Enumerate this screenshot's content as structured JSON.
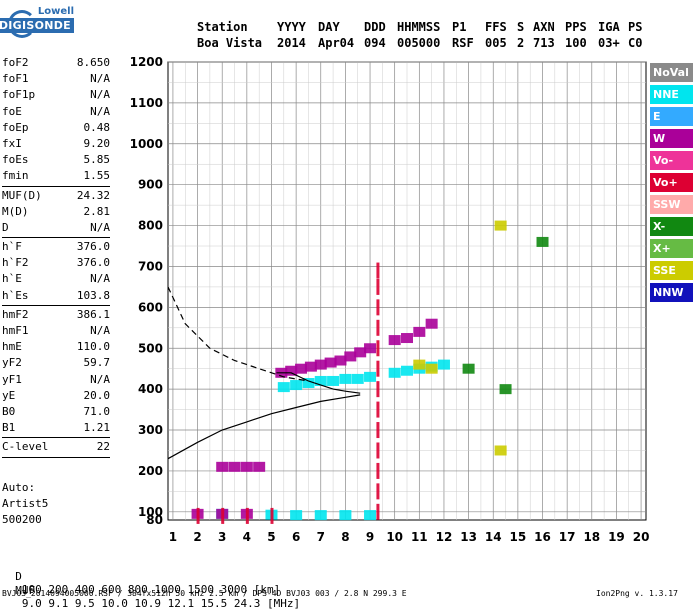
{
  "logo": {
    "top": "Lowell",
    "bottom": "DIGISONDE"
  },
  "header": {
    "row1": [
      "Station",
      "YYYY",
      "DAY",
      "DDD",
      "HHMMSS",
      "P1",
      "FFS",
      "S",
      "AXN",
      "PPS",
      "IGA",
      "PS"
    ],
    "row2": [
      "Boa Vista",
      "2014",
      "Apr04",
      "094",
      "005000",
      "RSF",
      "005",
      "2",
      "713",
      "100",
      "03+",
      "C0"
    ]
  },
  "params": [
    {
      "group": [
        [
          "foF2",
          "8.650"
        ],
        [
          "foF1",
          "N/A"
        ],
        [
          "foF1p",
          "N/A"
        ],
        [
          "foE",
          "N/A"
        ],
        [
          "foEp",
          "0.48"
        ],
        [
          "fxI",
          "9.20"
        ],
        [
          "foEs",
          "5.85"
        ],
        [
          "fmin",
          "1.55"
        ]
      ]
    },
    {
      "group": [
        [
          "MUF(D)",
          "24.32"
        ],
        [
          "M(D)",
          "2.81"
        ],
        [
          "D",
          "N/A"
        ]
      ]
    },
    {
      "group": [
        [
          "h`F",
          "376.0"
        ],
        [
          "h`F2",
          "376.0"
        ],
        [
          "h`E",
          "N/A"
        ],
        [
          "h`Es",
          "103.8"
        ]
      ]
    },
    {
      "group": [
        [
          "hmF2",
          "386.1"
        ],
        [
          "hmF1",
          "N/A"
        ],
        [
          "hmE",
          "110.0"
        ],
        [
          "yF2",
          "59.7"
        ],
        [
          "yF1",
          "N/A"
        ],
        [
          "yE",
          "20.0"
        ],
        [
          "B0",
          "71.0"
        ],
        [
          "B1",
          "1.21"
        ]
      ]
    },
    {
      "group": [
        [
          "C-level",
          "22"
        ]
      ]
    }
  ],
  "auto": {
    "line1": "Auto:",
    "line2": "Artist5",
    "line3": "500200"
  },
  "legend": [
    {
      "label": "NoVal",
      "color": "#8a8a8a"
    },
    {
      "label": "NNE",
      "color": "#00e5ee"
    },
    {
      "label": "E",
      "color": "#33aaff"
    },
    {
      "label": "W",
      "color": "#aa0099"
    },
    {
      "label": "Vo-",
      "color": "#ee3399"
    },
    {
      "label": "Vo+",
      "color": "#dd0033"
    },
    {
      "label": "SSW",
      "color": "#ffaaaa"
    },
    {
      "label": "X-",
      "color": "#118811"
    },
    {
      "label": "X+",
      "color": "#66bb44"
    },
    {
      "label": "SSE",
      "color": "#cccc00"
    },
    {
      "label": "NNW",
      "color": "#1111bb"
    }
  ],
  "footer": {
    "d_label": "D",
    "d_values": [
      "100",
      "200",
      "400",
      "600",
      "800",
      "1000",
      "1500",
      "3000",
      "[km]"
    ],
    "muf_label": "MUF",
    "muf_values": [
      "9.0",
      "9.1",
      "9.5",
      "10.0",
      "10.9",
      "12.1",
      "15.5",
      "24.3",
      "[MHz]"
    ],
    "file_line": "BVJ03_2014094005000.RSF / 384fx512h 50 kHz 2.5 km / DPS-4D BVJ03 003 / 2.8 N 299.3 E",
    "version": "Ion2Png v. 1.3.17"
  },
  "chart_data": {
    "type": "scatter",
    "xlim": [
      0.8,
      20.2
    ],
    "ylim": [
      80,
      1200
    ],
    "x_ticks": [
      1,
      2,
      3,
      4,
      5,
      6,
      7,
      8,
      9,
      10,
      11,
      12,
      13,
      14,
      15,
      16,
      17,
      18,
      19,
      20
    ],
    "y_ticks": [
      80,
      100,
      200,
      300,
      400,
      500,
      600,
      700,
      800,
      900,
      1000,
      1100,
      1200
    ],
    "grid": true,
    "traces": [
      {
        "name": "NNE",
        "points": [
          [
            5.5,
            405
          ],
          [
            6.0,
            410
          ],
          [
            6.5,
            415
          ],
          [
            7.0,
            420
          ],
          [
            7.5,
            420
          ],
          [
            8.0,
            425
          ],
          [
            8.5,
            425
          ],
          [
            9.0,
            430
          ],
          [
            10.0,
            440
          ],
          [
            10.5,
            445
          ],
          [
            11.0,
            450
          ],
          [
            11.5,
            455
          ],
          [
            12.0,
            460
          ],
          [
            3.0,
            95
          ],
          [
            5.0,
            93
          ],
          [
            6.0,
            92
          ],
          [
            7.0,
            92
          ],
          [
            8.0,
            92
          ],
          [
            9.0,
            92
          ]
        ]
      },
      {
        "name": "W",
        "points": [
          [
            5.4,
            440
          ],
          [
            5.8,
            445
          ],
          [
            6.2,
            450
          ],
          [
            6.6,
            455
          ],
          [
            7.0,
            460
          ],
          [
            7.4,
            465
          ],
          [
            7.8,
            470
          ],
          [
            8.2,
            480
          ],
          [
            8.6,
            490
          ],
          [
            9.0,
            500
          ],
          [
            10.0,
            520
          ],
          [
            10.5,
            525
          ],
          [
            11.0,
            540
          ],
          [
            11.5,
            560
          ],
          [
            3.0,
            210
          ],
          [
            3.5,
            210
          ],
          [
            4.0,
            210
          ],
          [
            4.5,
            210
          ],
          [
            2.0,
            95
          ],
          [
            3.0,
            95
          ],
          [
            4.0,
            95
          ]
        ]
      },
      {
        "name": "Vo+",
        "points": [
          [
            9.3,
            690
          ],
          [
            9.3,
            650
          ],
          [
            9.3,
            600
          ],
          [
            9.3,
            550
          ],
          [
            9.3,
            500
          ],
          [
            9.3,
            450
          ],
          [
            9.3,
            400
          ],
          [
            9.3,
            350
          ],
          [
            9.3,
            300
          ],
          [
            9.3,
            250
          ],
          [
            9.3,
            200
          ],
          [
            9.3,
            150
          ],
          [
            9.3,
            100
          ],
          [
            2.0,
            90
          ],
          [
            3.0,
            90
          ],
          [
            4.0,
            90
          ],
          [
            5.0,
            90
          ]
        ]
      },
      {
        "name": "X-",
        "points": [
          [
            13.0,
            450
          ],
          [
            14.5,
            400
          ],
          [
            16.0,
            760
          ]
        ]
      },
      {
        "name": "SSE",
        "points": [
          [
            14.3,
            800
          ],
          [
            14.3,
            250
          ],
          [
            11.0,
            460
          ],
          [
            11.5,
            450
          ]
        ]
      }
    ],
    "profile_solid": [
      [
        0.8,
        230
      ],
      [
        2.0,
        270
      ],
      [
        3.0,
        300
      ],
      [
        4.0,
        320
      ],
      [
        5.0,
        340
      ],
      [
        6.0,
        355
      ],
      [
        7.0,
        370
      ],
      [
        8.0,
        380
      ],
      [
        8.6,
        386
      ]
    ],
    "profile_dashed": [
      [
        0.8,
        650
      ],
      [
        1.5,
        560
      ],
      [
        2.5,
        500
      ],
      [
        3.5,
        470
      ],
      [
        4.5,
        450
      ],
      [
        5.5,
        430
      ],
      [
        6.5,
        420
      ]
    ],
    "trace_curve": [
      [
        5.2,
        440
      ],
      [
        5.8,
        440
      ],
      [
        6.5,
        420
      ],
      [
        7.5,
        400
      ],
      [
        8.0,
        395
      ],
      [
        8.6,
        390
      ]
    ]
  }
}
